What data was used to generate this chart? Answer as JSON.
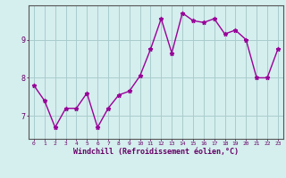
{
  "x": [
    0,
    1,
    2,
    3,
    4,
    5,
    6,
    7,
    8,
    9,
    10,
    11,
    12,
    13,
    14,
    15,
    16,
    17,
    18,
    19,
    20,
    21,
    22,
    23
  ],
  "y": [
    7.8,
    7.4,
    6.7,
    7.2,
    7.2,
    7.6,
    6.7,
    7.2,
    7.55,
    7.65,
    8.05,
    8.75,
    9.55,
    8.65,
    9.7,
    9.5,
    9.45,
    9.55,
    9.15,
    9.25,
    9.0,
    8.0,
    8.0,
    8.75
  ],
  "xlabel": "Windchill (Refroidissement éolien,°C)",
  "bg_color": "#d5eeee",
  "line_color": "#990099",
  "grid_color": "#aacccc",
  "axis_color": "#555555",
  "text_color": "#660066",
  "ylim": [
    6.4,
    9.9
  ],
  "yticks": [
    7,
    8,
    9
  ],
  "xlim": [
    -0.5,
    23.5
  ]
}
